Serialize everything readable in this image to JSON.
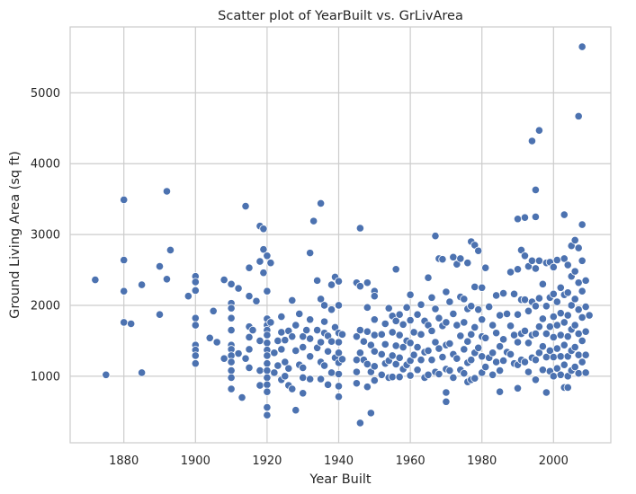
{
  "chart_data": {
    "type": "scatter",
    "title": "Scatter plot of YearBuilt vs. GrLivArea",
    "xlabel": "Year Built",
    "ylabel": "Ground Living Area (sq ft)",
    "xlim": [
      1865,
      2016
    ],
    "ylim": [
      60,
      5930
    ],
    "xticks": [
      1880,
      1900,
      1920,
      1940,
      1960,
      1980,
      2000
    ],
    "yticks": [
      1000,
      2000,
      3000,
      4000,
      5000
    ],
    "grid": true,
    "legend": "none",
    "point_color": "#4c72b0",
    "points": [
      [
        1872,
        2360
      ],
      [
        1875,
        1020
      ],
      [
        1880,
        3490
      ],
      [
        1880,
        2640
      ],
      [
        1880,
        2200
      ],
      [
        1880,
        1760
      ],
      [
        1882,
        1740
      ],
      [
        1885,
        2290
      ],
      [
        1885,
        1050
      ],
      [
        1890,
        2550
      ],
      [
        1890,
        1870
      ],
      [
        1892,
        3610
      ],
      [
        1892,
        2370
      ],
      [
        1893,
        2780
      ],
      [
        1898,
        2130
      ],
      [
        1900,
        2410
      ],
      [
        1900,
        2330
      ],
      [
        1900,
        2210
      ],
      [
        1900,
        1820
      ],
      [
        1900,
        1720
      ],
      [
        1900,
        1440
      ],
      [
        1900,
        1370
      ],
      [
        1900,
        1290
      ],
      [
        1900,
        1180
      ],
      [
        1904,
        1540
      ],
      [
        1905,
        1920
      ],
      [
        1906,
        1480
      ],
      [
        1908,
        2360
      ],
      [
        1908,
        1250
      ],
      [
        1910,
        2300
      ],
      [
        1910,
        2030
      ],
      [
        1910,
        1960
      ],
      [
        1910,
        1820
      ],
      [
        1910,
        1650
      ],
      [
        1910,
        1440
      ],
      [
        1910,
        1380
      ],
      [
        1910,
        1290
      ],
      [
        1910,
        1200
      ],
      [
        1910,
        1080
      ],
      [
        1910,
        980
      ],
      [
        1910,
        820
      ],
      [
        1912,
        2240
      ],
      [
        1912,
        1320
      ],
      [
        1913,
        700
      ],
      [
        1914,
        3400
      ],
      [
        1914,
        1250
      ],
      [
        1915,
        2530
      ],
      [
        1915,
        2130
      ],
      [
        1915,
        1700
      ],
      [
        1915,
        1550
      ],
      [
        1915,
        1380
      ],
      [
        1915,
        1120
      ],
      [
        1916,
        1650
      ],
      [
        1917,
        2060
      ],
      [
        1918,
        3120
      ],
      [
        1918,
        2620
      ],
      [
        1918,
        1500
      ],
      [
        1918,
        1080
      ],
      [
        1918,
        870
      ],
      [
        1919,
        3080
      ],
      [
        1919,
        2790
      ],
      [
        1919,
        2460
      ],
      [
        1920,
        2700
      ],
      [
        1920,
        2200
      ],
      [
        1920,
        1810
      ],
      [
        1920,
        1720
      ],
      [
        1920,
        1650
      ],
      [
        1920,
        1580
      ],
      [
        1920,
        1470
      ],
      [
        1920,
        1370
      ],
      [
        1920,
        1290
      ],
      [
        1920,
        1180
      ],
      [
        1920,
        1080
      ],
      [
        1920,
        980
      ],
      [
        1920,
        880
      ],
      [
        1920,
        780
      ],
      [
        1920,
        560
      ],
      [
        1920,
        450
      ],
      [
        1921,
        1760
      ],
      [
        1921,
        2600
      ],
      [
        1922,
        1330
      ],
      [
        1922,
        1050
      ],
      [
        1923,
        1500
      ],
      [
        1923,
        1150
      ],
      [
        1924,
        1840
      ],
      [
        1924,
        1620
      ],
      [
        1924,
        1380
      ],
      [
        1924,
        950
      ],
      [
        1925,
        1510
      ],
      [
        1925,
        1200
      ],
      [
        1925,
        1000
      ],
      [
        1926,
        1640
      ],
      [
        1926,
        1110
      ],
      [
        1926,
        870
      ],
      [
        1927,
        2070
      ],
      [
        1927,
        1560
      ],
      [
        1927,
        820
      ],
      [
        1928,
        1720
      ],
      [
        1928,
        1360
      ],
      [
        1928,
        520
      ],
      [
        1929,
        1880
      ],
      [
        1929,
        1160
      ],
      [
        1930,
        1560
      ],
      [
        1930,
        1410
      ],
      [
        1930,
        1120
      ],
      [
        1930,
        980
      ],
      [
        1930,
        760
      ],
      [
        1931,
        1650
      ],
      [
        1932,
        2740
      ],
      [
        1932,
        1800
      ],
      [
        1932,
        1530
      ],
      [
        1932,
        1280
      ],
      [
        1932,
        960
      ],
      [
        1933,
        3190
      ],
      [
        1934,
        2350
      ],
      [
        1934,
        1650
      ],
      [
        1934,
        1400
      ],
      [
        1935,
        3440
      ],
      [
        1935,
        2090
      ],
      [
        1935,
        1480
      ],
      [
        1935,
        1200
      ],
      [
        1935,
        960
      ],
      [
        1936,
        2000
      ],
      [
        1936,
        1770
      ],
      [
        1936,
        1610
      ],
      [
        1936,
        1150
      ],
      [
        1937,
        1570
      ],
      [
        1937,
        1350
      ],
      [
        1937,
        880
      ],
      [
        1938,
        2290
      ],
      [
        1938,
        1940
      ],
      [
        1938,
        1490
      ],
      [
        1938,
        1050
      ],
      [
        1939,
        2400
      ],
      [
        1939,
        1690
      ],
      [
        1939,
        1260
      ],
      [
        1940,
        2340
      ],
      [
        1940,
        2000
      ],
      [
        1940,
        1610
      ],
      [
        1940,
        1480
      ],
      [
        1940,
        1330
      ],
      [
        1940,
        1190
      ],
      [
        1940,
        1030
      ],
      [
        1940,
        860
      ],
      [
        1940,
        710
      ],
      [
        1941,
        1590
      ],
      [
        1941,
        1240
      ],
      [
        1945,
        2320
      ],
      [
        1945,
        1560
      ],
      [
        1945,
        1230
      ],
      [
        1945,
        1060
      ],
      [
        1945,
        900
      ],
      [
        1946,
        3090
      ],
      [
        1946,
        2270
      ],
      [
        1946,
        1650
      ],
      [
        1946,
        1330
      ],
      [
        1946,
        340
      ],
      [
        1947,
        1490
      ],
      [
        1947,
        1230
      ],
      [
        1948,
        2320
      ],
      [
        1948,
        1970
      ],
      [
        1948,
        1630
      ],
      [
        1948,
        1170
      ],
      [
        1948,
        850
      ],
      [
        1949,
        1440
      ],
      [
        1949,
        1060
      ],
      [
        1949,
        480
      ],
      [
        1950,
        2200
      ],
      [
        1950,
        2130
      ],
      [
        1950,
        1800
      ],
      [
        1950,
        1580
      ],
      [
        1950,
        1350
      ],
      [
        1950,
        1140
      ],
      [
        1950,
        940
      ],
      [
        1952,
        1590
      ],
      [
        1952,
        1310
      ],
      [
        1952,
        1020
      ],
      [
        1953,
        1740
      ],
      [
        1953,
        1450
      ],
      [
        1953,
        1180
      ],
      [
        1954,
        1960
      ],
      [
        1954,
        1220
      ],
      [
        1954,
        980
      ],
      [
        1955,
        1850
      ],
      [
        1955,
        1620
      ],
      [
        1955,
        1290
      ],
      [
        1955,
        990
      ],
      [
        1956,
        2510
      ],
      [
        1956,
        1780
      ],
      [
        1956,
        1430
      ],
      [
        1956,
        1170
      ],
      [
        1957,
        1870
      ],
      [
        1957,
        1580
      ],
      [
        1957,
        1260
      ],
      [
        1957,
        990
      ],
      [
        1958,
        1730
      ],
      [
        1958,
        1410
      ],
      [
        1958,
        1100
      ],
      [
        1959,
        1970
      ],
      [
        1959,
        1500
      ],
      [
        1959,
        1160
      ],
      [
        1960,
        2150
      ],
      [
        1960,
        1790
      ],
      [
        1960,
        1470
      ],
      [
        1960,
        1220
      ],
      [
        1960,
        1010
      ],
      [
        1961,
        1620
      ],
      [
        1961,
        1300
      ],
      [
        1962,
        1870
      ],
      [
        1962,
        1410
      ],
      [
        1962,
        1090
      ],
      [
        1963,
        2010
      ],
      [
        1963,
        1590
      ],
      [
        1963,
        1230
      ],
      [
        1964,
        1780
      ],
      [
        1964,
        1340
      ],
      [
        1964,
        980
      ],
      [
        1965,
        2390
      ],
      [
        1965,
        1720
      ],
      [
        1965,
        1360
      ],
      [
        1965,
        1020
      ],
      [
        1966,
        2110
      ],
      [
        1966,
        1640
      ],
      [
        1966,
        1230
      ],
      [
        1967,
        2980
      ],
      [
        1967,
        1950
      ],
      [
        1967,
        1480
      ],
      [
        1967,
        1060
      ],
      [
        1968,
        2660
      ],
      [
        1968,
        1820
      ],
      [
        1968,
        1390
      ],
      [
        1968,
        1030
      ],
      [
        1969,
        2650
      ],
      [
        1969,
        1710
      ],
      [
        1969,
        1270
      ],
      [
        1970,
        2190
      ],
      [
        1970,
        1760
      ],
      [
        1970,
        1440
      ],
      [
        1970,
        1100
      ],
      [
        1970,
        770
      ],
      [
        1970,
        640
      ],
      [
        1971,
        2050
      ],
      [
        1971,
        1460
      ],
      [
        1971,
        1080
      ],
      [
        1972,
        2680
      ],
      [
        1972,
        1880
      ],
      [
        1972,
        1310
      ],
      [
        1972,
        980
      ],
      [
        1973,
        2580
      ],
      [
        1973,
        1720
      ],
      [
        1973,
        1250
      ],
      [
        1974,
        2660
      ],
      [
        1974,
        2120
      ],
      [
        1974,
        1570
      ],
      [
        1974,
        1090
      ],
      [
        1975,
        2090
      ],
      [
        1975,
        1760
      ],
      [
        1975,
        1380
      ],
      [
        1975,
        1040
      ],
      [
        1976,
        2600
      ],
      [
        1976,
        1950
      ],
      [
        1976,
        1490
      ],
      [
        1976,
        1190
      ],
      [
        1976,
        920
      ],
      [
        1977,
        2900
      ],
      [
        1977,
        1990
      ],
      [
        1977,
        1590
      ],
      [
        1977,
        1230
      ],
      [
        1977,
        950
      ],
      [
        1978,
        2850
      ],
      [
        1978,
        2260
      ],
      [
        1978,
        1690
      ],
      [
        1978,
        1330
      ],
      [
        1978,
        970
      ],
      [
        1979,
        2770
      ],
      [
        1979,
        1940
      ],
      [
        1979,
        1400
      ],
      [
        1980,
        2250
      ],
      [
        1980,
        1800
      ],
      [
        1980,
        1560
      ],
      [
        1980,
        1280
      ],
      [
        1980,
        1050
      ],
      [
        1981,
        2530
      ],
      [
        1981,
        1540
      ],
      [
        1981,
        1130
      ],
      [
        1982,
        1980
      ],
      [
        1982,
        1260
      ],
      [
        1983,
        1720
      ],
      [
        1983,
        1330
      ],
      [
        1983,
        1020
      ],
      [
        1984,
        2140
      ],
      [
        1984,
        1610
      ],
      [
        1984,
        1200
      ],
      [
        1985,
        1860
      ],
      [
        1985,
        1420
      ],
      [
        1985,
        1080
      ],
      [
        1985,
        780
      ],
      [
        1986,
        2170
      ],
      [
        1986,
        1520
      ],
      [
        1986,
        1220
      ],
      [
        1987,
        1880
      ],
      [
        1987,
        1340
      ],
      [
        1988,
        2470
      ],
      [
        1988,
        1710
      ],
      [
        1988,
        1310
      ],
      [
        1989,
        2160
      ],
      [
        1989,
        1580
      ],
      [
        1989,
        1180
      ],
      [
        1990,
        3220
      ],
      [
        1990,
        2510
      ],
      [
        1990,
        1870
      ],
      [
        1990,
        1480
      ],
      [
        1990,
        1160
      ],
      [
        1990,
        830
      ],
      [
        1991,
        2780
      ],
      [
        1991,
        2080
      ],
      [
        1991,
        1600
      ],
      [
        1991,
        1230
      ],
      [
        1992,
        3240
      ],
      [
        1992,
        2700
      ],
      [
        1992,
        2080
      ],
      [
        1992,
        1640
      ],
      [
        1992,
        1200
      ],
      [
        1993,
        2550
      ],
      [
        1993,
        1920
      ],
      [
        1993,
        1470
      ],
      [
        1993,
        1060
      ],
      [
        1994,
        4320
      ],
      [
        1994,
        2630
      ],
      [
        1994,
        2050
      ],
      [
        1994,
        1580
      ],
      [
        1994,
        1260
      ],
      [
        1995,
        3630
      ],
      [
        1995,
        3250
      ],
      [
        1995,
        2520
      ],
      [
        1995,
        1990
      ],
      [
        1995,
        1600
      ],
      [
        1995,
        1230
      ],
      [
        1995,
        950
      ],
      [
        1996,
        4470
      ],
      [
        1996,
        2630
      ],
      [
        1996,
        2100
      ],
      [
        1996,
        1700
      ],
      [
        1996,
        1330
      ],
      [
        1997,
        2300
      ],
      [
        1997,
        1810
      ],
      [
        1997,
        1420
      ],
      [
        1997,
        1090
      ],
      [
        1998,
        2600
      ],
      [
        1998,
        1990
      ],
      [
        1998,
        1600
      ],
      [
        1998,
        1270
      ],
      [
        1998,
        770
      ],
      [
        1999,
        2610
      ],
      [
        1999,
        2110
      ],
      [
        1999,
        1700
      ],
      [
        1999,
        1360
      ],
      [
        1999,
        1070
      ],
      [
        2000,
        2540
      ],
      [
        2000,
        2160
      ],
      [
        2000,
        1840
      ],
      [
        2000,
        1550
      ],
      [
        2000,
        1270
      ],
      [
        2000,
        1000
      ],
      [
        2001,
        2640
      ],
      [
        2001,
        2050
      ],
      [
        2001,
        1720
      ],
      [
        2001,
        1390
      ],
      [
        2001,
        1110
      ],
      [
        2002,
        2250
      ],
      [
        2002,
        1890
      ],
      [
        2002,
        1580
      ],
      [
        2002,
        1280
      ],
      [
        2002,
        1020
      ],
      [
        2003,
        3280
      ],
      [
        2003,
        2660
      ],
      [
        2003,
        2150
      ],
      [
        2003,
        1760
      ],
      [
        2003,
        1440
      ],
      [
        2003,
        1160
      ],
      [
        2003,
        840
      ],
      [
        2004,
        2570
      ],
      [
        2004,
        2180
      ],
      [
        2004,
        1860
      ],
      [
        2004,
        1560
      ],
      [
        2004,
        1280
      ],
      [
        2004,
        1000
      ],
      [
        2004,
        840
      ],
      [
        2005,
        2840
      ],
      [
        2005,
        2410
      ],
      [
        2005,
        2000
      ],
      [
        2005,
        1660
      ],
      [
        2005,
        1360
      ],
      [
        2005,
        1080
      ],
      [
        2006,
        2920
      ],
      [
        2006,
        2480
      ],
      [
        2006,
        2090
      ],
      [
        2006,
        1720
      ],
      [
        2006,
        1410
      ],
      [
        2006,
        1130
      ],
      [
        2007,
        4670
      ],
      [
        2007,
        2810
      ],
      [
        2007,
        2320
      ],
      [
        2007,
        1940
      ],
      [
        2007,
        1600
      ],
      [
        2007,
        1300
      ],
      [
        2007,
        1040
      ],
      [
        2008,
        5650
      ],
      [
        2008,
        3140
      ],
      [
        2008,
        2630
      ],
      [
        2008,
        2200
      ],
      [
        2008,
        1830
      ],
      [
        2008,
        1500
      ],
      [
        2008,
        1200
      ],
      [
        2009,
        2350
      ],
      [
        2009,
        1980
      ],
      [
        2009,
        1630
      ],
      [
        2009,
        1300
      ],
      [
        2009,
        1050
      ],
      [
        2010,
        1860
      ]
    ]
  }
}
